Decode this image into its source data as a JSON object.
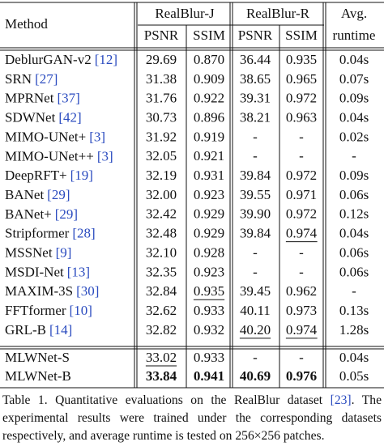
{
  "table": {
    "header": {
      "method": "Method",
      "groups": [
        "RealBlur-J",
        "RealBlur-R"
      ],
      "subheads": [
        "PSNR",
        "SSIM",
        "PSNR",
        "SSIM"
      ],
      "runtime": [
        "Avg.",
        "runtime"
      ]
    },
    "rows": [
      {
        "method": "DeblurGAN-v2",
        "ref": "[12]",
        "cells": [
          "29.69",
          "0.870",
          "36.44",
          "0.935",
          "0.04s"
        ]
      },
      {
        "method": "SRN",
        "ref": "[27]",
        "cells": [
          "31.38",
          "0.909",
          "38.65",
          "0.965",
          "0.07s"
        ]
      },
      {
        "method": "MPRNet",
        "ref": "[37]",
        "cells": [
          "31.76",
          "0.922",
          "39.31",
          "0.972",
          "0.09s"
        ]
      },
      {
        "method": "SDWNet",
        "ref": "[42]",
        "cells": [
          "30.73",
          "0.896",
          "38.21",
          "0.963",
          "0.04s"
        ]
      },
      {
        "method": "MIMO-UNet+",
        "ref": "[3]",
        "cells": [
          "31.92",
          "0.919",
          "-",
          "-",
          "0.02s"
        ]
      },
      {
        "method": "MIMO-UNet++",
        "ref": "[3]",
        "cells": [
          "32.05",
          "0.921",
          "-",
          "-",
          "-"
        ]
      },
      {
        "method": "DeepRFT+",
        "ref": "[19]",
        "cells": [
          "32.19",
          "0.931",
          "39.84",
          "0.972",
          "0.09s"
        ]
      },
      {
        "method": "BANet",
        "ref": "[29]",
        "cells": [
          "32.00",
          "0.923",
          "39.55",
          "0.971",
          "0.06s"
        ]
      },
      {
        "method": "BANet+",
        "ref": "[29]",
        "cells": [
          "32.42",
          "0.929",
          "39.90",
          "0.972",
          "0.12s"
        ]
      },
      {
        "method": "Stripformer",
        "ref": "[28]",
        "cells": [
          "32.48",
          "0.929",
          "39.84",
          "0.974",
          "0.04s"
        ],
        "underlined": [
          3
        ]
      },
      {
        "method": "MSSNet",
        "ref": "[9]",
        "cells": [
          "32.10",
          "0.928",
          "-",
          "-",
          "0.06s"
        ]
      },
      {
        "method": "MSDI-Net",
        "ref": "[13]",
        "cells": [
          "32.35",
          "0.923",
          "-",
          "-",
          "0.06s"
        ]
      },
      {
        "method": "MAXIM-3S",
        "ref": "[30]",
        "cells": [
          "32.84",
          "0.935",
          "39.45",
          "0.962",
          "-"
        ],
        "underlined": [
          1
        ]
      },
      {
        "method": "FFTformer",
        "ref": "[10]",
        "cells": [
          "32.62",
          "0.933",
          "40.11",
          "0.973",
          "0.13s"
        ]
      },
      {
        "method": "GRL-B",
        "ref": "[14]",
        "cells": [
          "32.82",
          "0.932",
          "40.20",
          "0.974",
          "1.28s"
        ],
        "underlined": [
          2,
          3
        ]
      },
      {
        "method": "MLWNet-S",
        "cells": [
          "33.02",
          "0.933",
          "-",
          "-",
          "0.04s"
        ],
        "underlined": [
          0
        ]
      },
      {
        "method": "MLWNet-B",
        "cells": [
          "33.84",
          "0.941",
          "40.69",
          "0.976",
          "0.05s"
        ],
        "bold": [
          0,
          1,
          2,
          3
        ]
      }
    ]
  },
  "caption": [
    {
      "text": "Table 1. Quantitative evaluations on the RealBlur dataset "
    },
    {
      "text": "[23]",
      "ref": true
    },
    {
      "text": ". The experimental results were trained under the corresponding datasets respectively, and average runtime is tested on 256×256 patches."
    }
  ]
}
